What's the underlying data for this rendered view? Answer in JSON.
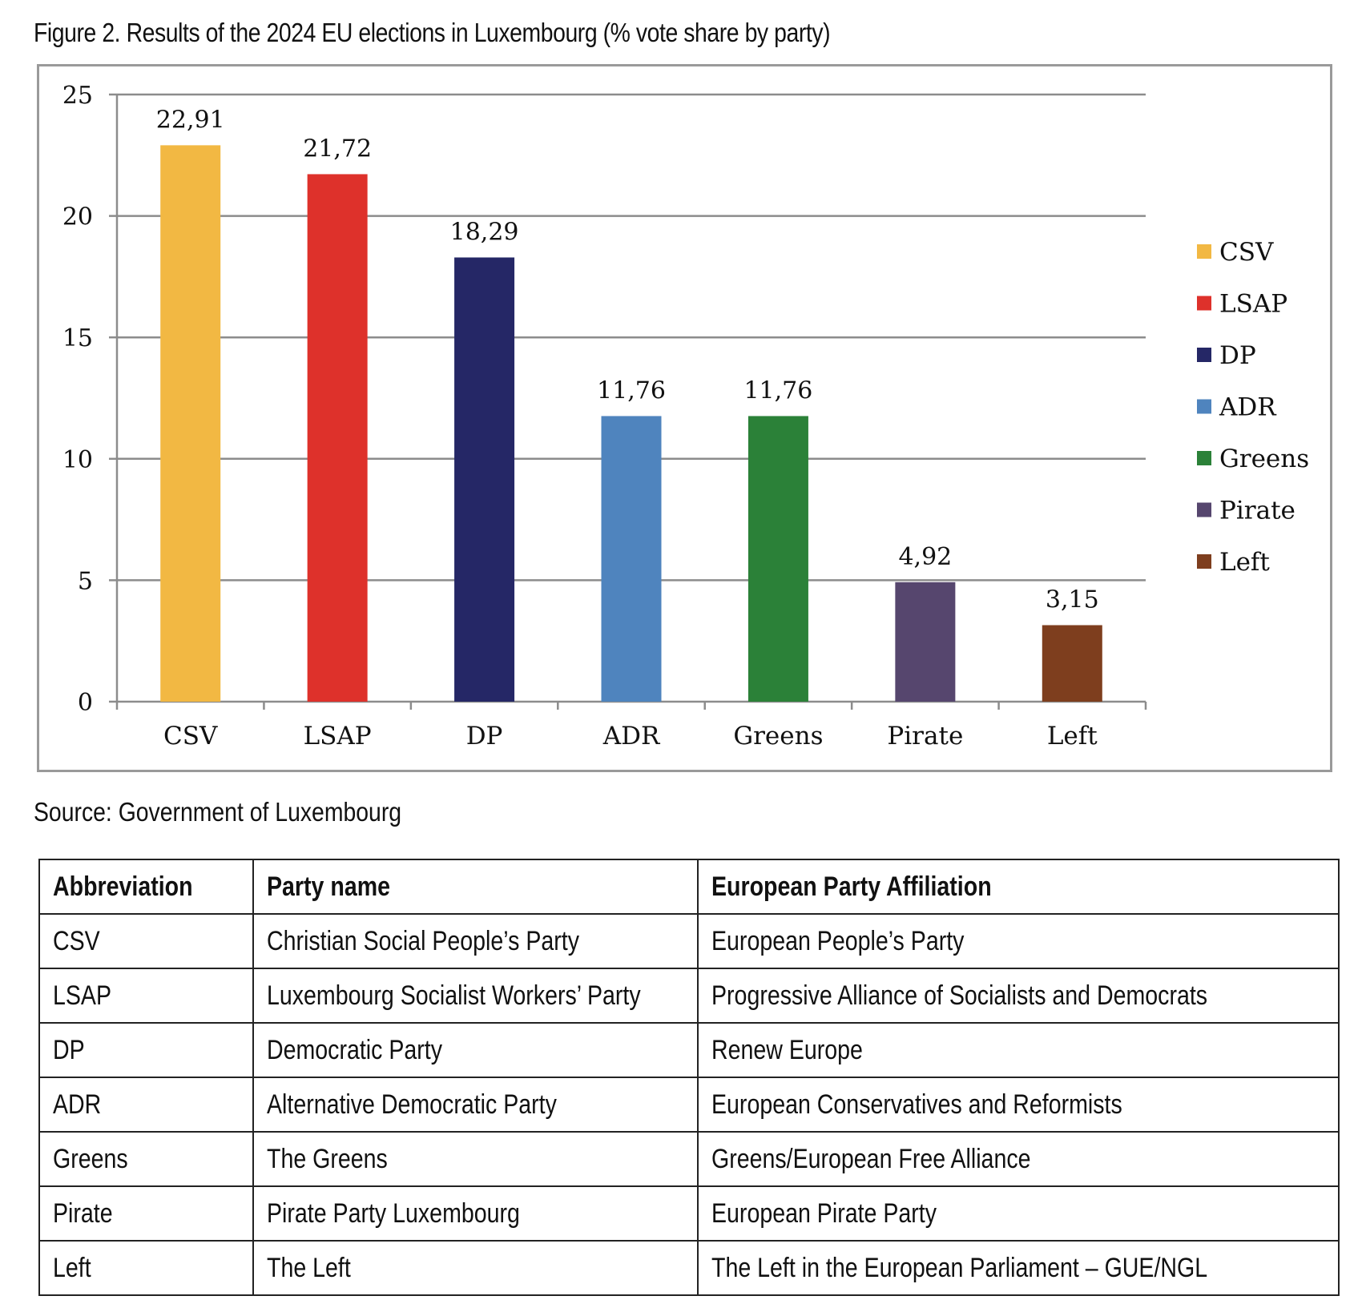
{
  "figure_title": "Figure 2. Results of the 2024 EU elections in Luxembourg (% vote share by party)",
  "source_note": "Source: Government of Luxembourg",
  "chart_data": {
    "type": "bar",
    "title": "",
    "xlabel": "",
    "ylabel": "",
    "categories": [
      "CSV",
      "LSAP",
      "DP",
      "ADR",
      "Greens",
      "Pirate",
      "Left"
    ],
    "values": [
      22.91,
      21.72,
      18.29,
      11.76,
      11.76,
      4.92,
      3.15
    ],
    "data_labels": [
      "22,91",
      "21,72",
      "18,29",
      "11,76",
      "11,76",
      "4,92",
      "3,15"
    ],
    "colors": [
      "#F2B843",
      "#DE312B",
      "#252766",
      "#4F84BE",
      "#2B8138",
      "#56466E",
      "#7E3E1E"
    ],
    "ylim": [
      0,
      25
    ],
    "yticks": [
      0,
      5,
      10,
      15,
      20,
      25
    ],
    "grid": true,
    "legend_position": "right",
    "legend": [
      "CSV",
      "LSAP",
      "DP",
      "ADR",
      "Greens",
      "Pirate",
      "Left"
    ]
  },
  "table": {
    "headers": [
      "Abbreviation",
      "Party name",
      "European Party Affiliation"
    ],
    "rows": [
      [
        "CSV",
        "Christian Social People’s Party",
        "European People’s Party"
      ],
      [
        "LSAP",
        "Luxembourg Socialist Workers’ Party",
        "Progressive Alliance of Socialists and Democrats"
      ],
      [
        "DP",
        "Democratic Party",
        "Renew Europe"
      ],
      [
        "ADR",
        "Alternative Democratic Party",
        "European Conservatives and Reformists"
      ],
      [
        "Greens",
        "The Greens",
        "Greens/European Free Alliance"
      ],
      [
        "Pirate",
        "Pirate Party Luxembourg",
        "European Pirate Party"
      ],
      [
        "Left",
        "The Left",
        "The Left in the European Parliament – GUE/NGL"
      ]
    ]
  }
}
